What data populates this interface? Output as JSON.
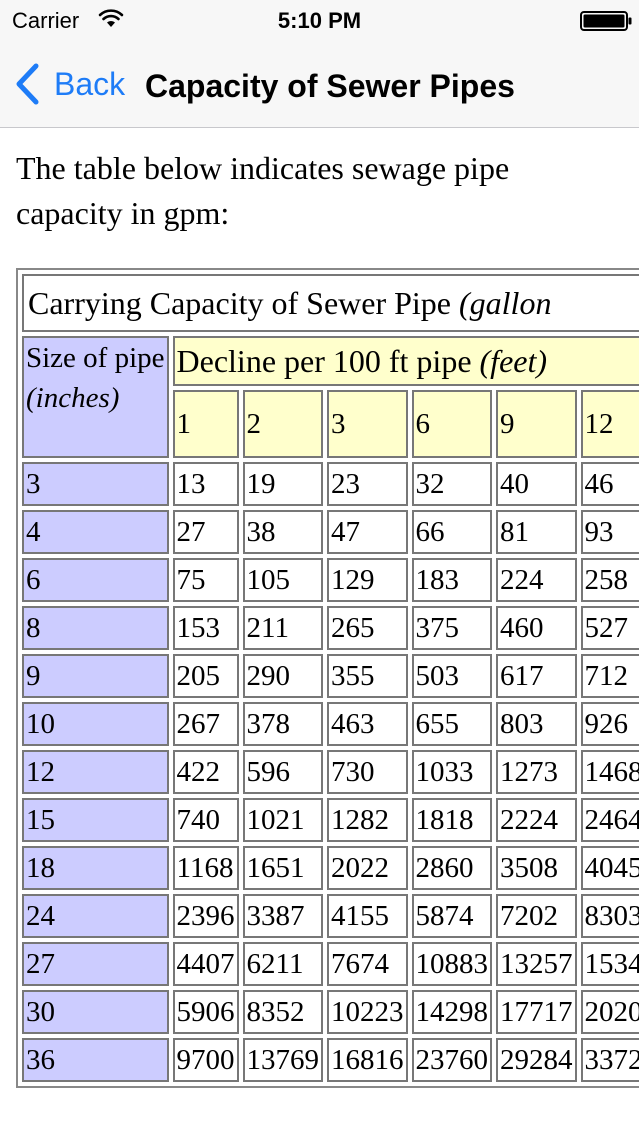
{
  "status_bar": {
    "carrier": "Carrier",
    "time": "5:10 PM",
    "icons": [
      "wifi-icon",
      "battery-icon"
    ]
  },
  "nav": {
    "back_label": "Back",
    "title": "Capacity of Sewer Pipes",
    "accent_color": "#1e7cf7"
  },
  "intro_text": "The table below indicates sewage pipe capacity in gpm:",
  "table": {
    "caption": "Carrying Capacity of Sewer Pipe",
    "caption_unit": "(gallon",
    "size_header": "Size of pipe",
    "size_unit": "(inches)",
    "decline_header": "Decline per 100 ft pipe",
    "decline_unit": "(feet)",
    "columns": [
      "1",
      "2",
      "3",
      "6",
      "9",
      "12"
    ],
    "rows": [
      {
        "size": "3",
        "values": [
          "13",
          "19",
          "23",
          "32",
          "40",
          "46"
        ]
      },
      {
        "size": "4",
        "values": [
          "27",
          "38",
          "47",
          "66",
          "81",
          "93"
        ]
      },
      {
        "size": "6",
        "values": [
          "75",
          "105",
          "129",
          "183",
          "224",
          "258"
        ]
      },
      {
        "size": "8",
        "values": [
          "153",
          "211",
          "265",
          "375",
          "460",
          "527"
        ]
      },
      {
        "size": "9",
        "values": [
          "205",
          "290",
          "355",
          "503",
          "617",
          "712"
        ]
      },
      {
        "size": "10",
        "values": [
          "267",
          "378",
          "463",
          "655",
          "803",
          "926"
        ]
      },
      {
        "size": "12",
        "values": [
          "422",
          "596",
          "730",
          "1033",
          "1273",
          "1468"
        ]
      },
      {
        "size": "15",
        "values": [
          "740",
          "1021",
          "1282",
          "1818",
          "2224",
          "2464"
        ]
      },
      {
        "size": "18",
        "values": [
          "1168",
          "1651",
          "2022",
          "2860",
          "3508",
          "4045"
        ]
      },
      {
        "size": "24",
        "values": [
          "2396",
          "3387",
          "4155",
          "5874",
          "7202",
          "8303"
        ]
      },
      {
        "size": "27",
        "values": [
          "4407",
          "6211",
          "7674",
          "10883",
          "13257",
          "1534"
        ]
      },
      {
        "size": "30",
        "values": [
          "5906",
          "8352",
          "10223",
          "14298",
          "17717",
          "2020"
        ]
      },
      {
        "size": "36",
        "values": [
          "9700",
          "13769",
          "16816",
          "23760",
          "29284",
          "3372"
        ]
      }
    ],
    "colors": {
      "size_column_bg": "#ccccff",
      "decline_header_bg": "#ffffcc"
    }
  }
}
